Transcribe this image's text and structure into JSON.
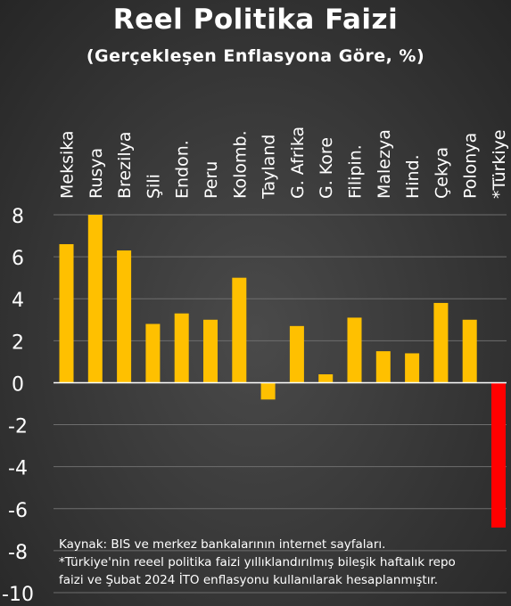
{
  "title": "Reel Politika Faizi",
  "subtitle": "(Gerçekleşen Enflasyona Göre, %)",
  "footnote": {
    "source": "Kaynak: BIS ve merkez bankalarının internet sayfaları.",
    "note_line1": "*Türkiye'nin reeel politika faizi yıllıklandırılmış bileşik haftalık repo",
    "note_line2": "faizi ve Şubat 2024 İTO enflasyonu kullanılarak hesaplanmıştır."
  },
  "colors": {
    "bar": "#FFC000",
    "highlight": "#FF0000",
    "text": "#FFFFFF",
    "grid": "#6E6E6E",
    "zero_line": "#FFFFFF"
  },
  "chart_data": {
    "type": "bar",
    "title": "Reel Politika Faizi",
    "subtitle": "(Gerçekleşen Enflasyona Göre, %)",
    "categories": [
      "Meksika",
      "Rusya",
      "Brezilya",
      "Şili",
      "Endon.",
      "Peru",
      "Kolomb.",
      "Tayland",
      "G. Afrika",
      "G. Kore",
      "Filipin.",
      "Malezya",
      "Hind.",
      "Çekya",
      "Polonya",
      "*Türkiye"
    ],
    "values": [
      6.6,
      8.0,
      6.3,
      2.8,
      3.3,
      3.0,
      5.0,
      -0.8,
      2.7,
      0.4,
      3.1,
      1.5,
      1.4,
      3.8,
      3.0,
      -6.9
    ],
    "highlight": [
      "*Türkiye"
    ],
    "ylim": [
      -10,
      8
    ],
    "yticks": [
      8,
      6,
      4,
      2,
      0,
      -2,
      -4,
      -6,
      -8,
      -10
    ],
    "xlabel": "",
    "ylabel": "",
    "grid": true,
    "legend": "none"
  }
}
